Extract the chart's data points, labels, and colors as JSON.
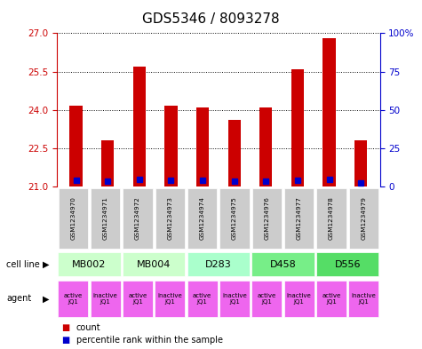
{
  "title": "GDS5346 / 8093278",
  "samples": [
    "GSM1234970",
    "GSM1234971",
    "GSM1234972",
    "GSM1234973",
    "GSM1234974",
    "GSM1234975",
    "GSM1234976",
    "GSM1234977",
    "GSM1234978",
    "GSM1234979"
  ],
  "red_values": [
    24.15,
    22.8,
    25.7,
    24.15,
    24.1,
    23.6,
    24.1,
    25.6,
    26.8,
    22.8
  ],
  "blue_values": [
    21.25,
    21.2,
    21.3,
    21.25,
    21.25,
    21.2,
    21.2,
    21.25,
    21.3,
    21.15
  ],
  "ymin": 21,
  "ymax": 27,
  "yticks": [
    21,
    22.5,
    24,
    25.5,
    27
  ],
  "right_yticks": [
    0,
    25,
    50,
    75,
    100
  ],
  "cell_lines": [
    {
      "label": "MB002",
      "cols": [
        0,
        1
      ],
      "color": "#ccffcc"
    },
    {
      "label": "MB004",
      "cols": [
        2,
        3
      ],
      "color": "#ccffcc"
    },
    {
      "label": "D283",
      "cols": [
        4,
        5
      ],
      "color": "#aaffcc"
    },
    {
      "label": "D458",
      "cols": [
        6,
        7
      ],
      "color": "#77ee88"
    },
    {
      "label": "D556",
      "cols": [
        8,
        9
      ],
      "color": "#55dd66"
    }
  ],
  "agents": [
    {
      "label": "active\nJQ1",
      "col": 0
    },
    {
      "label": "inactive\nJQ1",
      "col": 1
    },
    {
      "label": "active\nJQ1",
      "col": 2
    },
    {
      "label": "inactive\nJQ1",
      "col": 3
    },
    {
      "label": "active\nJQ1",
      "col": 4
    },
    {
      "label": "inactive\nJQ1",
      "col": 5
    },
    {
      "label": "active\nJQ1",
      "col": 6
    },
    {
      "label": "inactive\nJQ1",
      "col": 7
    },
    {
      "label": "active\nJQ1",
      "col": 8
    },
    {
      "label": "inactive\nJQ1",
      "col": 9
    }
  ],
  "agent_color": "#ee66ee",
  "bar_color": "#cc0000",
  "blue_color": "#0000cc",
  "sample_box_color": "#cccccc",
  "left_tick_color": "#cc0000",
  "right_tick_color": "#0000cc",
  "title_fontsize": 11,
  "bar_width": 0.4
}
